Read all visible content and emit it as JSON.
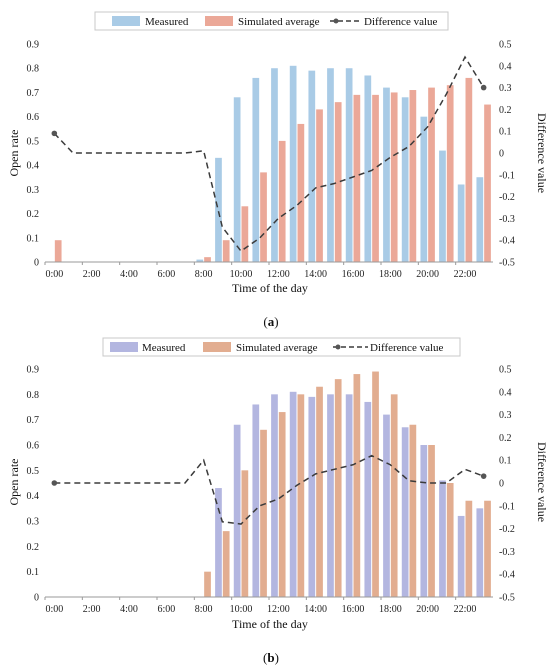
{
  "colors": {
    "panel_a": {
      "measured": "#a9cbe6",
      "simulated": "#eba898",
      "difference": "#3b3b3b"
    },
    "panel_b": {
      "measured": "#b3b6e0",
      "simulated": "#e2ad90",
      "difference": "#3b3b3b"
    }
  },
  "chart_data": [
    {
      "panel": "(a)",
      "panel_letter": "a",
      "type": "bar",
      "categories": [
        "0:00",
        "1:00",
        "2:00",
        "3:00",
        "4:00",
        "5:00",
        "6:00",
        "7:00",
        "8:00",
        "9:00",
        "10:00",
        "11:00",
        "12:00",
        "13:00",
        "14:00",
        "15:00",
        "16:00",
        "17:00",
        "18:00",
        "19:00",
        "20:00",
        "21:00",
        "22:00",
        "23:00"
      ],
      "x_tick_labels": [
        "0:00",
        "2:00",
        "4:00",
        "6:00",
        "8:00",
        "10:00",
        "12:00",
        "14:00",
        "16:00",
        "18:00",
        "20:00",
        "22:00"
      ],
      "xlabel": "Time of the day",
      "ylabel": "Open rate",
      "y2label": "Difference value",
      "ylim": [
        0,
        0.9
      ],
      "y_ticks": [
        "0",
        "0.1",
        "0.2",
        "0.3",
        "0.4",
        "0.5",
        "0.6",
        "0.7",
        "0.8",
        "0.9"
      ],
      "y2lim": [
        -0.5,
        0.5
      ],
      "y2_ticks": [
        "-0.5",
        "-0.4",
        "-0.3",
        "-0.2",
        "-0.1",
        "0",
        "0.1",
        "0.2",
        "0.3",
        "0.4",
        "0.5"
      ],
      "legend_position": "top",
      "series": [
        {
          "name": "Measured",
          "type": "bar",
          "axis": "left",
          "values": [
            0,
            0,
            0,
            0,
            0,
            0,
            0,
            0,
            0.01,
            0.43,
            0.68,
            0.76,
            0.8,
            0.81,
            0.79,
            0.8,
            0.8,
            0.77,
            0.72,
            0.68,
            0.6,
            0.46,
            0.32,
            0.35
          ]
        },
        {
          "name": "Simulated average",
          "type": "bar",
          "axis": "left",
          "values": [
            0.09,
            0,
            0,
            0,
            0,
            0,
            0,
            0,
            0.02,
            0.09,
            0.23,
            0.37,
            0.5,
            0.57,
            0.63,
            0.66,
            0.69,
            0.69,
            0.7,
            0.71,
            0.72,
            0.73,
            0.76,
            0.65
          ]
        },
        {
          "name": "Difference value",
          "type": "line",
          "axis": "right",
          "values": [
            0.09,
            0,
            0,
            0,
            0,
            0,
            0,
            0,
            0.01,
            -0.34,
            -0.45,
            -0.39,
            -0.3,
            -0.24,
            -0.16,
            -0.14,
            -0.11,
            -0.08,
            -0.02,
            0.03,
            0.12,
            0.27,
            0.44,
            0.3
          ]
        }
      ]
    },
    {
      "panel": "(b)",
      "panel_letter": "b",
      "type": "bar",
      "categories": [
        "0:00",
        "1:00",
        "2:00",
        "3:00",
        "4:00",
        "5:00",
        "6:00",
        "7:00",
        "8:00",
        "9:00",
        "10:00",
        "11:00",
        "12:00",
        "13:00",
        "14:00",
        "15:00",
        "16:00",
        "17:00",
        "18:00",
        "19:00",
        "20:00",
        "21:00",
        "22:00",
        "23:00"
      ],
      "x_tick_labels": [
        "0:00",
        "2:00",
        "4:00",
        "6:00",
        "8:00",
        "10:00",
        "12:00",
        "14:00",
        "16:00",
        "18:00",
        "20:00",
        "22:00"
      ],
      "xlabel": "Time of the day",
      "ylabel": "Open rate",
      "y2label": "Difference value",
      "ylim": [
        0,
        0.9
      ],
      "y_ticks": [
        "0",
        "0.1",
        "0.2",
        "0.3",
        "0.4",
        "0.5",
        "0.6",
        "0.7",
        "0.8",
        "0.9"
      ],
      "y2lim": [
        -0.5,
        0.5
      ],
      "y2_ticks": [
        "-0.5",
        "-0.4",
        "-0.3",
        "-0.2",
        "-0.1",
        "0",
        "0.1",
        "0.2",
        "0.3",
        "0.4",
        "0.5"
      ],
      "legend_position": "top",
      "series": [
        {
          "name": "Measured",
          "type": "bar",
          "axis": "left",
          "values": [
            0,
            0,
            0,
            0,
            0,
            0,
            0,
            0,
            0,
            0.43,
            0.68,
            0.76,
            0.8,
            0.81,
            0.79,
            0.8,
            0.8,
            0.77,
            0.72,
            0.67,
            0.6,
            0.46,
            0.32,
            0.35
          ]
        },
        {
          "name": "Simulated average",
          "type": "bar",
          "axis": "left",
          "values": [
            0,
            0,
            0,
            0,
            0,
            0,
            0,
            0,
            0.1,
            0.26,
            0.5,
            0.66,
            0.73,
            0.8,
            0.83,
            0.86,
            0.88,
            0.89,
            0.8,
            0.68,
            0.6,
            0.45,
            0.38,
            0.38
          ]
        },
        {
          "name": "Difference value",
          "type": "line",
          "axis": "right",
          "values": [
            0,
            0,
            0,
            0,
            0,
            0,
            0,
            0,
            0.1,
            -0.17,
            -0.18,
            -0.1,
            -0.07,
            -0.01,
            0.04,
            0.06,
            0.08,
            0.12,
            0.08,
            0.01,
            0,
            0,
            0.06,
            0.03
          ]
        }
      ]
    }
  ]
}
